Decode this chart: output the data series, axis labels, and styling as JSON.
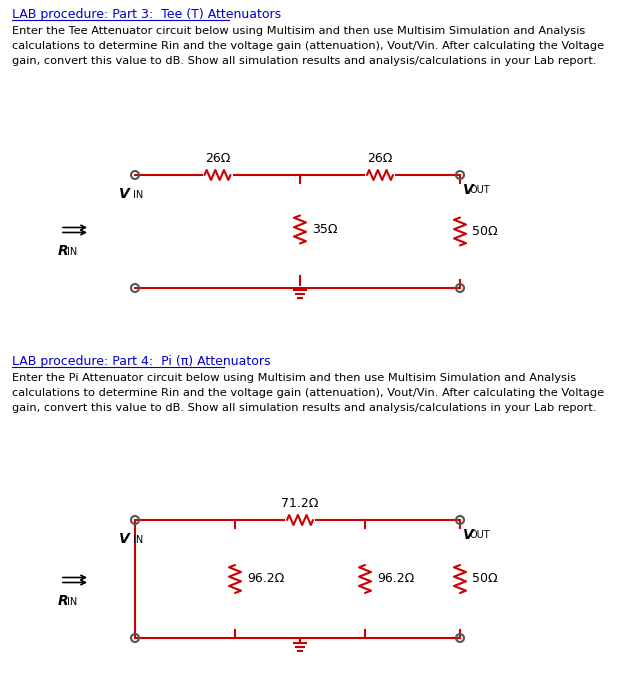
{
  "bg_color": "#ffffff",
  "part3": {
    "title": "LAB procedure: Part 3:  Tee (T) Attenuators",
    "body": "Enter the Tee Attenuator circuit below using Multisim and then use Multisim Simulation and Analysis\ncalculations to determine Rin and the voltage gain (attenuation), Vout/Vin. After calculating the Voltage\ngain, convert this value to dB. Show all simulation results and analysis/calculations in your Lab report.",
    "circuit_color": "#cc0000",
    "r1_label": "26Ω",
    "r2_label": "26Ω",
    "r3_label": "35Ω",
    "r4_label": "50Ω"
  },
  "part4": {
    "title": "LAB procedure: Part 4:  Pi (π) Attenuators",
    "body": "Enter the Pi Attenuator circuit below using Multisim and then use Multisim Simulation and Analysis\ncalculations to determine Rin and the voltage gain (attenuation), Vout/Vin. After calculating the Voltage\ngain, convert this value to dB. Show all simulation results and analysis/calculations in your Lab report.",
    "circuit_color": "#cc0000",
    "r1_label": "71.2Ω",
    "r2_label": "96.2Ω",
    "r3_label": "96.2Ω",
    "r4_label": "50Ω"
  }
}
